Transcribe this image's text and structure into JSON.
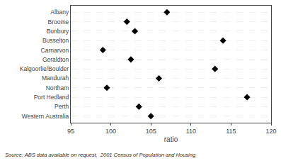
{
  "chart_data": {
    "type": "dot",
    "categories": [
      "Albany",
      "Broome",
      "Bunbury",
      "Busselton",
      "Carnarvon",
      "Geraldton",
      "Kalgoorlie/Boulder",
      "Mandurah",
      "Northam",
      "Port Hedland",
      "Perth",
      "Western Australia"
    ],
    "values": [
      107.0,
      102.0,
      103.0,
      114.0,
      99.0,
      102.5,
      113.0,
      106.0,
      99.5,
      117.0,
      103.5,
      105.0
    ],
    "xlabel": "ratio",
    "xlim": [
      95,
      120
    ],
    "xticks": [
      95,
      100,
      105,
      110,
      115,
      120
    ],
    "marker": "diamond",
    "color": "#000000",
    "grid": "y",
    "annotation": "Source: ABS data available on request,  2001 Census of Population and Housing"
  }
}
